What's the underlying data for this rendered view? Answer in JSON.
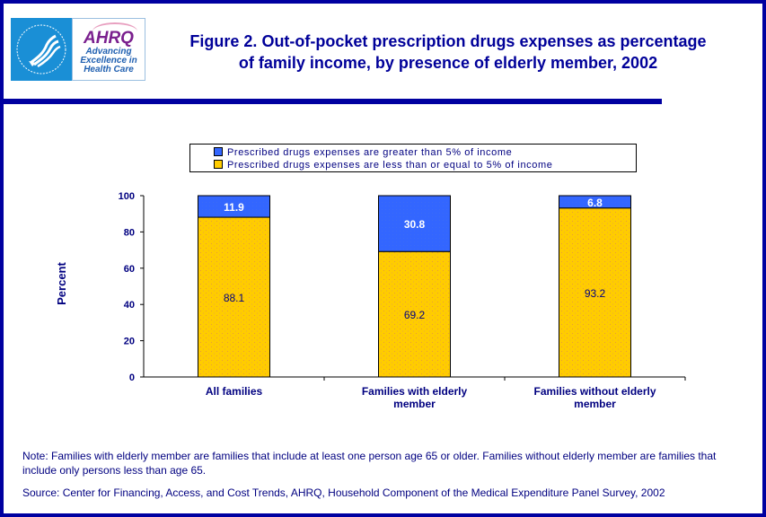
{
  "header": {
    "logos": [
      {
        "name": "hhs-logo",
        "alt": "Department of Health & Human Services USA"
      },
      {
        "name": "ahrq-logo",
        "mark": "AHRQ",
        "tagline": [
          "Advancing",
          "Excellence in",
          "Health Care"
        ]
      }
    ],
    "title_line1": "Figure 2. Out-of-pocket prescription drugs expenses as percentage",
    "title_line2": "of family income, by presence of elderly member, 2002"
  },
  "colors": {
    "frame": "#0000a0",
    "title": "#000099",
    "series_gt5": "#3366ff",
    "series_le5": "#ffcc00",
    "text": "#000080"
  },
  "chart_data": {
    "type": "bar",
    "stacked": true,
    "title": "Figure 2. Out-of-pocket prescription drugs expenses as percentage of family income, by presence of elderly member, 2002",
    "categories": [
      "All families",
      "Families with elderly member",
      "Families without elderly member"
    ],
    "category_lines": [
      [
        "All families"
      ],
      [
        "Families with elderly",
        "member"
      ],
      [
        "Families without elderly",
        "member"
      ]
    ],
    "series": [
      {
        "name": "Prescribed drugs expenses are less than or equal to 5% of income",
        "values": [
          88.1,
          69.2,
          93.2
        ],
        "color": "#ffcc00",
        "label_color": "#000080"
      },
      {
        "name": "Prescribed drugs expenses are greater than 5% of income",
        "values": [
          11.9,
          30.8,
          6.8
        ],
        "color": "#3366ff",
        "label_color": "#ffffff"
      }
    ],
    "legend_order": [
      1,
      0
    ],
    "legend_position": "top",
    "xlabel": "",
    "ylabel": "Percent",
    "ylim": [
      0,
      100
    ],
    "yticks": [
      0,
      20,
      40,
      60,
      80,
      100
    ],
    "grid": false
  },
  "footer": {
    "note": "Note: Families with elderly member are families that include at least one person age 65 or older. Families without elderly member are families that include only persons less than age 65.",
    "source": "Source: Center for Financing, Access, and Cost Trends, AHRQ, Household Component of the Medical Expenditure Panel Survey, 2002"
  }
}
